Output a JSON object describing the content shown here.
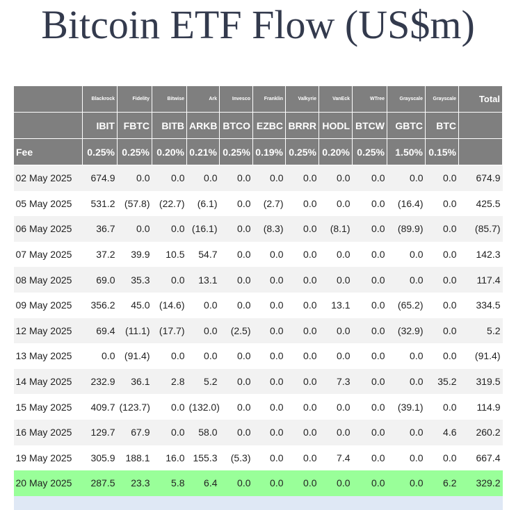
{
  "title": "Bitcoin ETF Flow (US$m)",
  "colors": {
    "header_bg": "#7f7f7f",
    "row_alt": "#f2f2f2",
    "latest_row": "#99ff99",
    "negative": "#e31b1b"
  },
  "columns": [
    {
      "issuer": "Blackrock",
      "ticker": "IBIT",
      "fee": "0.25%"
    },
    {
      "issuer": "Fidelity",
      "ticker": "FBTC",
      "fee": "0.25%"
    },
    {
      "issuer": "Bitwise",
      "ticker": "BITB",
      "fee": "0.20%"
    },
    {
      "issuer": "Ark",
      "ticker": "ARKB",
      "fee": "0.21%"
    },
    {
      "issuer": "Invesco",
      "ticker": "BTCO",
      "fee": "0.25%"
    },
    {
      "issuer": "Franklin",
      "ticker": "EZBC",
      "fee": "0.19%"
    },
    {
      "issuer": "Valkyrie",
      "ticker": "BRRR",
      "fee": "0.25%"
    },
    {
      "issuer": "VanEck",
      "ticker": "HODL",
      "fee": "0.20%"
    },
    {
      "issuer": "WTree",
      "ticker": "BTCW",
      "fee": "0.25%"
    },
    {
      "issuer": "Grayscale",
      "ticker": "GBTC",
      "fee": "1.50%"
    },
    {
      "issuer": "Grayscale",
      "ticker": "BTC",
      "fee": "0.15%"
    }
  ],
  "total_label": "Total",
  "fee_label": "Fee",
  "rows": [
    {
      "date": "02 May 2025",
      "values": [
        "674.9",
        "0.0",
        "0.0",
        "0.0",
        "0.0",
        "0.0",
        "0.0",
        "0.0",
        "0.0",
        "0.0",
        "0.0"
      ],
      "total": "674.9"
    },
    {
      "date": "05 May 2025",
      "values": [
        "531.2",
        "(57.8)",
        "(22.7)",
        "(6.1)",
        "0.0",
        "(2.7)",
        "0.0",
        "0.0",
        "0.0",
        "(16.4)",
        "0.0"
      ],
      "total": "425.5"
    },
    {
      "date": "06 May 2025",
      "values": [
        "36.7",
        "0.0",
        "0.0",
        "(16.1)",
        "0.0",
        "(8.3)",
        "0.0",
        "(8.1)",
        "0.0",
        "(89.9)",
        "0.0"
      ],
      "total": "(85.7)"
    },
    {
      "date": "07 May 2025",
      "values": [
        "37.2",
        "39.9",
        "10.5",
        "54.7",
        "0.0",
        "0.0",
        "0.0",
        "0.0",
        "0.0",
        "0.0",
        "0.0"
      ],
      "total": "142.3"
    },
    {
      "date": "08 May 2025",
      "values": [
        "69.0",
        "35.3",
        "0.0",
        "13.1",
        "0.0",
        "0.0",
        "0.0",
        "0.0",
        "0.0",
        "0.0",
        "0.0"
      ],
      "total": "117.4"
    },
    {
      "date": "09 May 2025",
      "values": [
        "356.2",
        "45.0",
        "(14.6)",
        "0.0",
        "0.0",
        "0.0",
        "0.0",
        "13.1",
        "0.0",
        "(65.2)",
        "0.0"
      ],
      "total": "334.5"
    },
    {
      "date": "12 May 2025",
      "values": [
        "69.4",
        "(11.1)",
        "(17.7)",
        "0.0",
        "(2.5)",
        "0.0",
        "0.0",
        "0.0",
        "0.0",
        "(32.9)",
        "0.0"
      ],
      "total": "5.2"
    },
    {
      "date": "13 May 2025",
      "values": [
        "0.0",
        "(91.4)",
        "0.0",
        "0.0",
        "0.0",
        "0.0",
        "0.0",
        "0.0",
        "0.0",
        "0.0",
        "0.0"
      ],
      "total": "(91.4)"
    },
    {
      "date": "14 May 2025",
      "values": [
        "232.9",
        "36.1",
        "2.8",
        "5.2",
        "0.0",
        "0.0",
        "0.0",
        "7.3",
        "0.0",
        "0.0",
        "35.2"
      ],
      "total": "319.5"
    },
    {
      "date": "15 May 2025",
      "values": [
        "409.7",
        "(123.7)",
        "0.0",
        "(132.0)",
        "0.0",
        "0.0",
        "0.0",
        "0.0",
        "0.0",
        "(39.1)",
        "0.0"
      ],
      "total": "114.9"
    },
    {
      "date": "16 May 2025",
      "values": [
        "129.7",
        "67.9",
        "0.0",
        "58.0",
        "0.0",
        "0.0",
        "0.0",
        "0.0",
        "0.0",
        "0.0",
        "4.6"
      ],
      "total": "260.2"
    },
    {
      "date": "19 May 2025",
      "values": [
        "305.9",
        "188.1",
        "16.0",
        "155.3",
        "(5.3)",
        "0.0",
        "0.0",
        "7.4",
        "0.0",
        "0.0",
        "0.0"
      ],
      "total": "667.4"
    },
    {
      "date": "20 May 2025",
      "values": [
        "287.5",
        "23.3",
        "5.8",
        "6.4",
        "0.0",
        "0.0",
        "0.0",
        "0.0",
        "0.0",
        "0.0",
        "6.2"
      ],
      "total": "329.2",
      "highlight": true
    }
  ]
}
